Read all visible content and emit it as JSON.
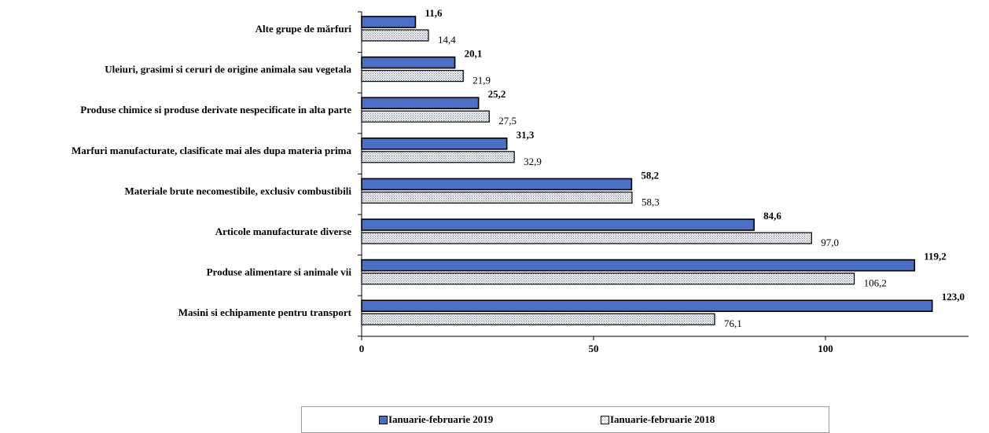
{
  "chart_data": {
    "type": "bar",
    "orientation": "horizontal",
    "categories": [
      "Alte grupe de mărfuri",
      "Uleiuri, grasimi si ceruri de origine animala sau vegetala",
      "Produse chimice si produse derivate nespecificate in alta parte",
      "Marfuri manufacturate, clasificate mai ales dupa materia prima",
      "Materiale brute necomestibile, exclusiv combustibili",
      "Articole manufacturate diverse",
      "Produse alimentare si animale vii",
      "Masini si echipamente pentru transport"
    ],
    "series": [
      {
        "name": "Ianuarie-februarie 2019",
        "values": [
          11.6,
          20.1,
          25.2,
          31.3,
          58.2,
          84.6,
          119.2,
          123.0
        ],
        "labels": [
          "11,6",
          "20,1",
          "25,2",
          "31,3",
          "58,2",
          "84,6",
          "119,2",
          "123,0"
        ],
        "color": "#4a6fc4"
      },
      {
        "name": "Ianuarie-februarie 2018",
        "values": [
          14.4,
          21.9,
          27.5,
          32.9,
          58.3,
          97.0,
          106.2,
          76.1
        ],
        "labels": [
          "14,4",
          "21,9",
          "27,5",
          "32,9",
          "58,3",
          "97,0",
          "106,2",
          "76,1"
        ],
        "color": "#ffffff",
        "pattern": "dotted"
      }
    ],
    "xticks": [
      "0",
      "50",
      "100"
    ],
    "xtick_values": [
      0,
      50,
      100
    ],
    "xlim": [
      0,
      130
    ],
    "grid": false,
    "legend_position": "bottom"
  }
}
